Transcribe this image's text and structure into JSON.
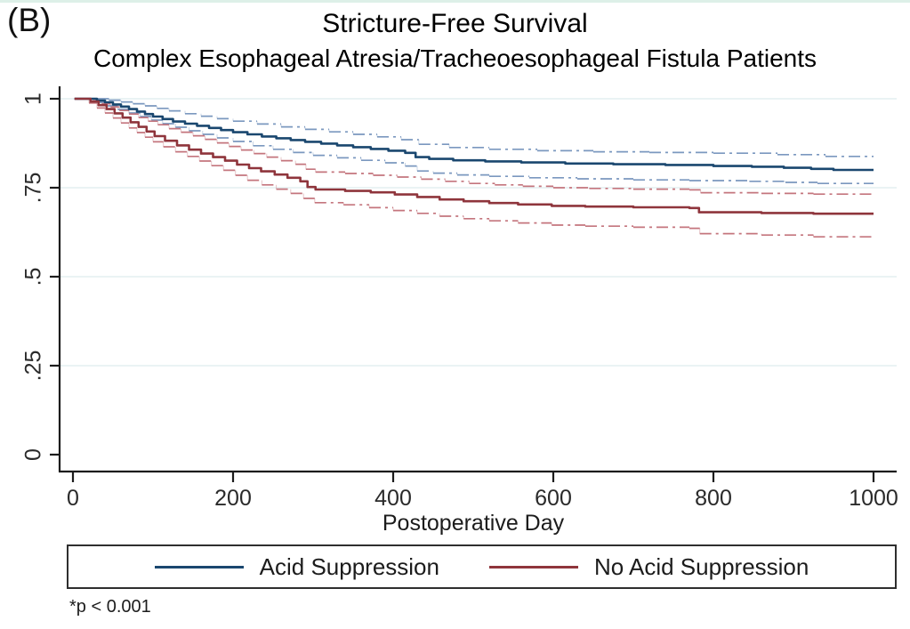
{
  "panel_label": "(B)",
  "title": "Stricture-Free Survival",
  "subtitle": "Complex Esophageal Atresia/Tracheoesophageal Fistula Patients",
  "footnote": "*p < 0.001",
  "colors": {
    "estimate_blue": "#1a476f",
    "ci_blue": "#7b98bf",
    "estimate_red": "#8f353c",
    "ci_red": "#c4757d",
    "grid": "#e4eff1",
    "axis": "#1c1c1c",
    "top_strip": "#ddf0e8",
    "legend_border": "#2e2e2e"
  },
  "chart_data": {
    "type": "line",
    "subtype": "kaplan_meier_step",
    "title": "Stricture-Free Survival",
    "subtitle": "Complex Esophageal Atresia/Tracheoesophageal Fistula Patients",
    "xlabel": "Postoperative Day",
    "ylabel": "",
    "xlim": [
      0,
      1000
    ],
    "ylim": [
      0,
      1
    ],
    "grid": "horizontal",
    "x_axis": {
      "ticks": [
        0,
        200,
        400,
        600,
        800,
        1000
      ]
    },
    "y_axis": {
      "ticks": [
        {
          "label": "1",
          "value": 1.0,
          "grid": true
        },
        {
          "label": ".75",
          "value": 0.75,
          "grid": true
        },
        {
          "label": ".5",
          "value": 0.5,
          "grid": true
        },
        {
          "label": ".25",
          "value": 0.25,
          "grid": true
        },
        {
          "label": "0",
          "value": 0.0,
          "grid": false
        }
      ]
    },
    "legend": {
      "position": "bottom",
      "entries": [
        {
          "label": "Acid Suppression",
          "color": "#1a476f"
        },
        {
          "label": "No Acid Suppression",
          "color": "#8f353c"
        }
      ]
    },
    "annotation": "*p < 0.001",
    "series": [
      {
        "name": "Acid Suppression",
        "role": "estimate",
        "color": "#1a476f",
        "width": 2.6,
        "dash": null,
        "points": [
          [
            2,
            1
          ],
          [
            30,
            0.995
          ],
          [
            40,
            0.99
          ],
          [
            50,
            0.984
          ],
          [
            60,
            0.978
          ],
          [
            70,
            0.971
          ],
          [
            80,
            0.964
          ],
          [
            90,
            0.957
          ],
          [
            100,
            0.95
          ],
          [
            112,
            0.943
          ],
          [
            125,
            0.936
          ],
          [
            140,
            0.93
          ],
          [
            155,
            0.924
          ],
          [
            170,
            0.918
          ],
          [
            185,
            0.912
          ],
          [
            200,
            0.906
          ],
          [
            218,
            0.9
          ],
          [
            236,
            0.894
          ],
          [
            254,
            0.889
          ],
          [
            272,
            0.884
          ],
          [
            290,
            0.879
          ],
          [
            310,
            0.874
          ],
          [
            330,
            0.869
          ],
          [
            350,
            0.864
          ],
          [
            372,
            0.859
          ],
          [
            394,
            0.854
          ],
          [
            415,
            0.848
          ],
          [
            428,
            0.836
          ],
          [
            445,
            0.831
          ],
          [
            475,
            0.827
          ],
          [
            515,
            0.824
          ],
          [
            560,
            0.821
          ],
          [
            615,
            0.818
          ],
          [
            675,
            0.816
          ],
          [
            740,
            0.814
          ],
          [
            800,
            0.811
          ],
          [
            848,
            0.809
          ],
          [
            888,
            0.806
          ],
          [
            922,
            0.803
          ],
          [
            950,
            0.8
          ],
          [
            1000,
            0.8
          ]
        ]
      },
      {
        "name": "Acid Suppression 95% CI upper",
        "role": "ci_upper",
        "color": "#7b98bf",
        "width": 1.7,
        "dash": "13 5 3 5",
        "points": [
          [
            2,
            1
          ],
          [
            45,
            0.996
          ],
          [
            60,
            0.991
          ],
          [
            75,
            0.986
          ],
          [
            90,
            0.98
          ],
          [
            105,
            0.973
          ],
          [
            120,
            0.966
          ],
          [
            140,
            0.958
          ],
          [
            160,
            0.951
          ],
          [
            180,
            0.944
          ],
          [
            200,
            0.937
          ],
          [
            230,
            0.929
          ],
          [
            260,
            0.921
          ],
          [
            290,
            0.914
          ],
          [
            320,
            0.907
          ],
          [
            350,
            0.9
          ],
          [
            380,
            0.893
          ],
          [
            410,
            0.885
          ],
          [
            432,
            0.872
          ],
          [
            470,
            0.863
          ],
          [
            520,
            0.858
          ],
          [
            580,
            0.854
          ],
          [
            650,
            0.851
          ],
          [
            720,
            0.849
          ],
          [
            800,
            0.847
          ],
          [
            880,
            0.843
          ],
          [
            940,
            0.838
          ],
          [
            1000,
            0.838
          ]
        ]
      },
      {
        "name": "Acid Suppression 95% CI lower",
        "role": "ci_lower",
        "color": "#7b98bf",
        "width": 1.7,
        "dash": "13 5 3 5",
        "points": [
          [
            2,
            1
          ],
          [
            28,
            0.99
          ],
          [
            42,
            0.98
          ],
          [
            56,
            0.97
          ],
          [
            70,
            0.96
          ],
          [
            84,
            0.95
          ],
          [
            98,
            0.94
          ],
          [
            112,
            0.93
          ],
          [
            128,
            0.92
          ],
          [
            145,
            0.91
          ],
          [
            162,
            0.9
          ],
          [
            180,
            0.89
          ],
          [
            200,
            0.88
          ],
          [
            225,
            0.868
          ],
          [
            250,
            0.858
          ],
          [
            275,
            0.849
          ],
          [
            300,
            0.841
          ],
          [
            330,
            0.834
          ],
          [
            360,
            0.827
          ],
          [
            390,
            0.82
          ],
          [
            415,
            0.811
          ],
          [
            430,
            0.797
          ],
          [
            450,
            0.791
          ],
          [
            480,
            0.786
          ],
          [
            520,
            0.782
          ],
          [
            570,
            0.778
          ],
          [
            630,
            0.775
          ],
          [
            700,
            0.772
          ],
          [
            770,
            0.77
          ],
          [
            845,
            0.768
          ],
          [
            890,
            0.765
          ],
          [
            930,
            0.762
          ],
          [
            1000,
            0.762
          ]
        ]
      },
      {
        "name": "No Acid Suppression",
        "role": "estimate",
        "color": "#8f353c",
        "width": 2.6,
        "dash": null,
        "points": [
          [
            2,
            1
          ],
          [
            22,
            0.992
          ],
          [
            32,
            0.982
          ],
          [
            42,
            0.971
          ],
          [
            52,
            0.959
          ],
          [
            62,
            0.947
          ],
          [
            72,
            0.934
          ],
          [
            82,
            0.921
          ],
          [
            92,
            0.908
          ],
          [
            102,
            0.895
          ],
          [
            115,
            0.882
          ],
          [
            130,
            0.869
          ],
          [
            145,
            0.857
          ],
          [
            160,
            0.846
          ],
          [
            175,
            0.836
          ],
          [
            190,
            0.826
          ],
          [
            205,
            0.815
          ],
          [
            220,
            0.805
          ],
          [
            235,
            0.796
          ],
          [
            252,
            0.787
          ],
          [
            268,
            0.778
          ],
          [
            284,
            0.768
          ],
          [
            293,
            0.752
          ],
          [
            303,
            0.745
          ],
          [
            340,
            0.741
          ],
          [
            372,
            0.737
          ],
          [
            402,
            0.731
          ],
          [
            430,
            0.724
          ],
          [
            458,
            0.717
          ],
          [
            488,
            0.712
          ],
          [
            520,
            0.707
          ],
          [
            556,
            0.703
          ],
          [
            598,
            0.699
          ],
          [
            640,
            0.697
          ],
          [
            700,
            0.695
          ],
          [
            770,
            0.693
          ],
          [
            782,
            0.681
          ],
          [
            860,
            0.679
          ],
          [
            925,
            0.677
          ],
          [
            1000,
            0.677
          ]
        ]
      },
      {
        "name": "No Acid Suppression 95% CI upper",
        "role": "ci_upper",
        "color": "#c4757d",
        "width": 1.7,
        "dash": "13 5 3 5",
        "points": [
          [
            2,
            1
          ],
          [
            25,
            0.994
          ],
          [
            36,
            0.986
          ],
          [
            47,
            0.977
          ],
          [
            58,
            0.967
          ],
          [
            70,
            0.957
          ],
          [
            82,
            0.947
          ],
          [
            94,
            0.937
          ],
          [
            106,
            0.927
          ],
          [
            120,
            0.916
          ],
          [
            135,
            0.906
          ],
          [
            150,
            0.896
          ],
          [
            165,
            0.886
          ],
          [
            180,
            0.876
          ],
          [
            195,
            0.866
          ],
          [
            210,
            0.856
          ],
          [
            226,
            0.846
          ],
          [
            242,
            0.836
          ],
          [
            260,
            0.826
          ],
          [
            278,
            0.816
          ],
          [
            291,
            0.802
          ],
          [
            303,
            0.794
          ],
          [
            340,
            0.79
          ],
          [
            375,
            0.785
          ],
          [
            405,
            0.78
          ],
          [
            435,
            0.774
          ],
          [
            465,
            0.768
          ],
          [
            495,
            0.762
          ],
          [
            527,
            0.758
          ],
          [
            562,
            0.754
          ],
          [
            600,
            0.75
          ],
          [
            645,
            0.748
          ],
          [
            700,
            0.746
          ],
          [
            770,
            0.744
          ],
          [
            784,
            0.736
          ],
          [
            860,
            0.734
          ],
          [
            925,
            0.732
          ],
          [
            1000,
            0.732
          ]
        ]
      },
      {
        "name": "No Acid Suppression 95% CI lower",
        "role": "ci_lower",
        "color": "#c4757d",
        "width": 1.7,
        "dash": "13 5 3 5",
        "points": [
          [
            2,
            1
          ],
          [
            20,
            0.988
          ],
          [
            30,
            0.974
          ],
          [
            40,
            0.96
          ],
          [
            50,
            0.946
          ],
          [
            60,
            0.932
          ],
          [
            70,
            0.918
          ],
          [
            80,
            0.905
          ],
          [
            90,
            0.892
          ],
          [
            100,
            0.879
          ],
          [
            113,
            0.865
          ],
          [
            128,
            0.851
          ],
          [
            143,
            0.838
          ],
          [
            158,
            0.825
          ],
          [
            173,
            0.812
          ],
          [
            188,
            0.799
          ],
          [
            203,
            0.785
          ],
          [
            218,
            0.771
          ],
          [
            236,
            0.758
          ],
          [
            254,
            0.746
          ],
          [
            272,
            0.734
          ],
          [
            288,
            0.72
          ],
          [
            302,
            0.708
          ],
          [
            338,
            0.702
          ],
          [
            370,
            0.694
          ],
          [
            400,
            0.686
          ],
          [
            430,
            0.678
          ],
          [
            458,
            0.67
          ],
          [
            488,
            0.663
          ],
          [
            520,
            0.657
          ],
          [
            556,
            0.651
          ],
          [
            598,
            0.645
          ],
          [
            640,
            0.642
          ],
          [
            700,
            0.639
          ],
          [
            770,
            0.636
          ],
          [
            783,
            0.621
          ],
          [
            860,
            0.617
          ],
          [
            925,
            0.612
          ],
          [
            1000,
            0.612
          ]
        ]
      }
    ]
  }
}
